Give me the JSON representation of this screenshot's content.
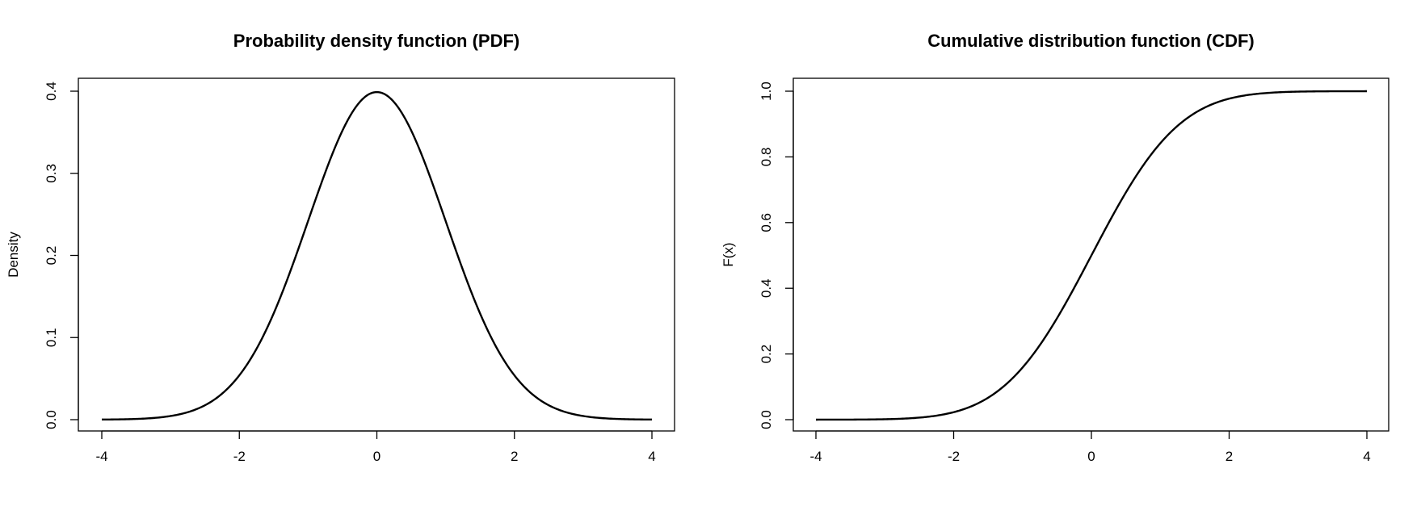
{
  "chart_data": [
    {
      "type": "line",
      "title": "Probability density function (PDF)",
      "xlabel": "",
      "ylabel": "Density",
      "xlim": [
        -4,
        4
      ],
      "ylim": [
        0,
        0.4
      ],
      "xticks": [
        -4,
        -2,
        0,
        2,
        4
      ],
      "xtick_labels": [
        "-4",
        "-2",
        "0",
        "2",
        "4"
      ],
      "yticks": [
        0.0,
        0.1,
        0.2,
        0.3,
        0.4
      ],
      "ytick_labels": [
        "0.0",
        "0.1",
        "0.2",
        "0.3",
        "0.4"
      ],
      "grid": false,
      "series": [
        {
          "x": [
            -4,
            -3.5,
            -3,
            -2.5,
            -2,
            -1.5,
            -1,
            -0.5,
            0,
            0.5,
            1,
            1.5,
            2,
            2.5,
            3,
            3.5,
            4
          ],
          "y": [
            0.0001,
            0.0009,
            0.0044,
            0.0175,
            0.054,
            0.1295,
            0.242,
            0.3521,
            0.3989,
            0.3521,
            0.242,
            0.1295,
            0.054,
            0.0175,
            0.0044,
            0.0009,
            0.0001
          ]
        }
      ]
    },
    {
      "type": "line",
      "title": "Cumulative distribution function (CDF)",
      "xlabel": "",
      "ylabel": "F(x)",
      "xlim": [
        -4,
        4
      ],
      "ylim": [
        0,
        1
      ],
      "xticks": [
        -4,
        -2,
        0,
        2,
        4
      ],
      "xtick_labels": [
        "-4",
        "-2",
        "0",
        "2",
        "4"
      ],
      "yticks": [
        0.0,
        0.2,
        0.4,
        0.6,
        0.8,
        1.0
      ],
      "ytick_labels": [
        "0.0",
        "0.2",
        "0.4",
        "0.6",
        "0.8",
        "1.0"
      ],
      "grid": false,
      "series": [
        {
          "x": [
            -4,
            -3.5,
            -3,
            -2.5,
            -2,
            -1.5,
            -1,
            -0.5,
            0,
            0.5,
            1,
            1.5,
            2,
            2.5,
            3,
            3.5,
            4
          ],
          "y": [
            0.0,
            0.0002,
            0.0013,
            0.0062,
            0.0228,
            0.0668,
            0.1587,
            0.3085,
            0.5,
            0.6915,
            0.8413,
            0.9332,
            0.9772,
            0.9938,
            0.9987,
            0.9998,
            1.0
          ]
        }
      ]
    }
  ]
}
